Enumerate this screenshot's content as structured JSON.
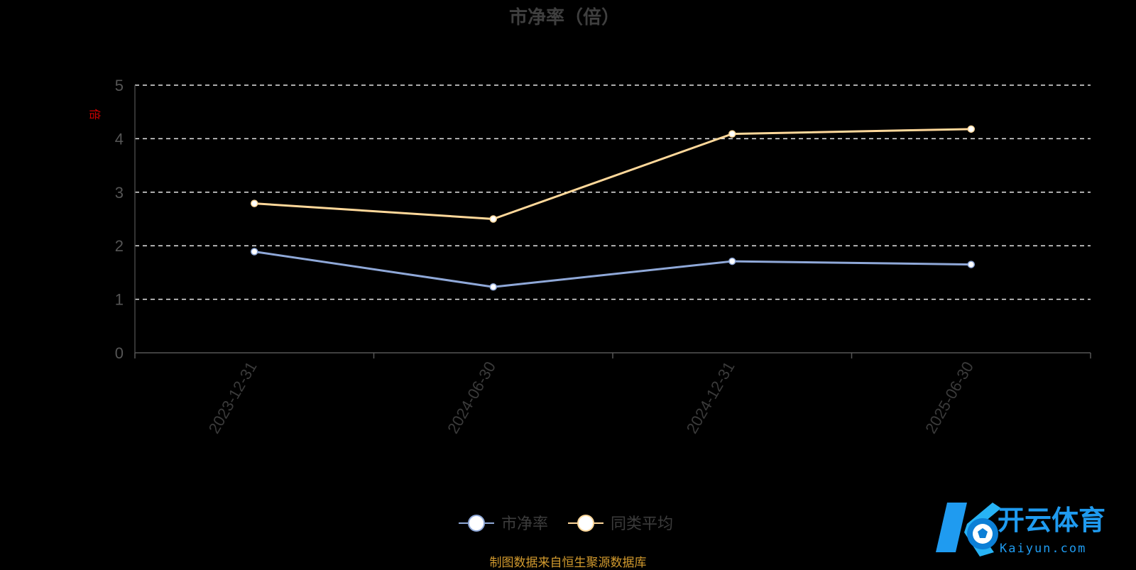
{
  "chart_data": {
    "type": "line",
    "title": "市净率（倍）",
    "ylabel": "倍",
    "categories": [
      "2023-12-31",
      "2024-06-30",
      "2024-12-31",
      "2025-06-30"
    ],
    "yticks": [
      "0",
      "1",
      "2",
      "3",
      "4",
      "5"
    ],
    "ylim": [
      0,
      5
    ],
    "grid": true,
    "legend_position": "bottom",
    "series": [
      {
        "name": "市净率",
        "color": "#8fa8d8",
        "values": [
          1.89,
          1.23,
          1.71,
          1.65
        ]
      },
      {
        "name": "同类平均",
        "color": "#ffd89a",
        "values": [
          2.79,
          2.5,
          4.09,
          4.18
        ]
      }
    ]
  },
  "source_text": "制图数据来自恒生聚源数据库",
  "watermark": {
    "brand": "开云体育",
    "domain": "Kaiyun.com",
    "color": "#1f9bf0"
  }
}
